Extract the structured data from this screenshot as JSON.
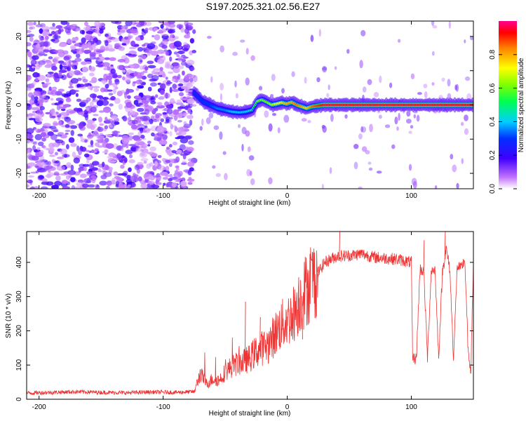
{
  "title": "S197.2025.321.02.56.E27",
  "chart_data": [
    {
      "type": "heatmap",
      "name": "spectrogram",
      "xlabel": "Height of straight line (km)",
      "ylabel": "Frequency (Hz)",
      "xlim": [
        -210,
        150
      ],
      "ylim": [
        -24.5,
        24.5
      ],
      "xticks": [
        -200,
        -100,
        0,
        100
      ],
      "yticks": [
        -20,
        -10,
        0,
        10,
        20
      ],
      "noise_region_x": [
        -210,
        -75
      ],
      "ridge": {
        "x": [
          -75,
          -68,
          -62,
          -56,
          -50,
          -44,
          -38,
          -33,
          -28,
          -24,
          -20,
          -16,
          -12,
          -8,
          -4,
          0,
          4,
          8,
          12,
          16,
          20,
          30,
          60,
          100,
          150
        ],
        "freq": [
          3.5,
          1.0,
          0.0,
          -1.0,
          -1.5,
          -2.0,
          -2.2,
          -2.0,
          -1.5,
          1.0,
          1.5,
          0.8,
          0.0,
          0.3,
          0.7,
          0.3,
          0.8,
          0.0,
          -0.5,
          -1.0,
          -0.5,
          0.0,
          0.0,
          0.0,
          0.0
        ],
        "amp": [
          0.25,
          0.3,
          0.3,
          0.35,
          0.35,
          0.4,
          0.4,
          0.4,
          0.45,
          0.6,
          0.6,
          0.6,
          0.65,
          0.7,
          0.75,
          0.8,
          0.8,
          0.85,
          0.8,
          0.75,
          0.85,
          0.95,
          0.95,
          0.95,
          0.95
        ]
      },
      "colorbar": {
        "label": "Normalized spectral amplitude",
        "range": [
          0,
          1
        ],
        "ticks": [
          0.0,
          0.2,
          0.4,
          0.6,
          0.8
        ],
        "tick_labels": [
          "0.0",
          "0.2",
          "0.4",
          "0.6",
          "0.8"
        ]
      }
    },
    {
      "type": "line",
      "name": "snr",
      "xlabel": "Height of straight line (km)",
      "ylabel": "SNR (10 * v/v)",
      "xlim": [
        -210,
        150
      ],
      "ylim": [
        0,
        490
      ],
      "xticks": [
        -200,
        -100,
        0,
        100
      ],
      "yticks": [
        0,
        100,
        200,
        300,
        400
      ],
      "color": "#ee3333",
      "series": [
        {
          "name": "SNR",
          "x": [
            -210,
            -190,
            -170,
            -150,
            -130,
            -110,
            -90,
            -75,
            -70,
            -65,
            -60,
            -55,
            -50,
            -45,
            -40,
            -35,
            -30,
            -25,
            -20,
            -15,
            -10,
            -5,
            0,
            5,
            10,
            15,
            20,
            25,
            30,
            40,
            50,
            60,
            70,
            80,
            90,
            100,
            101,
            104,
            107,
            110,
            113,
            116,
            119,
            122,
            125,
            128,
            131,
            134,
            137,
            140,
            143,
            146,
            148,
            150
          ],
          "y": [
            18,
            20,
            22,
            20,
            19,
            21,
            20,
            22,
            75,
            45,
            60,
            55,
            80,
            95,
            105,
            110,
            120,
            140,
            150,
            160,
            190,
            215,
            230,
            250,
            290,
            320,
            345,
            370,
            400,
            418,
            420,
            425,
            415,
            412,
            408,
            400,
            120,
            118,
            380,
            375,
            120,
            375,
            380,
            120,
            370,
            440,
            380,
            120,
            390,
            380,
            410,
            120,
            90,
            400
          ]
        }
      ],
      "spikes": [
        {
          "x": -34,
          "y": 285
        },
        {
          "x": -22,
          "y": 240
        },
        {
          "x": 12,
          "y": 175
        },
        {
          "x": 16,
          "y": 370
        },
        {
          "x": 42,
          "y": 490
        },
        {
          "x": 110,
          "y": 465
        },
        {
          "x": 127,
          "y": 490
        }
      ]
    }
  ]
}
